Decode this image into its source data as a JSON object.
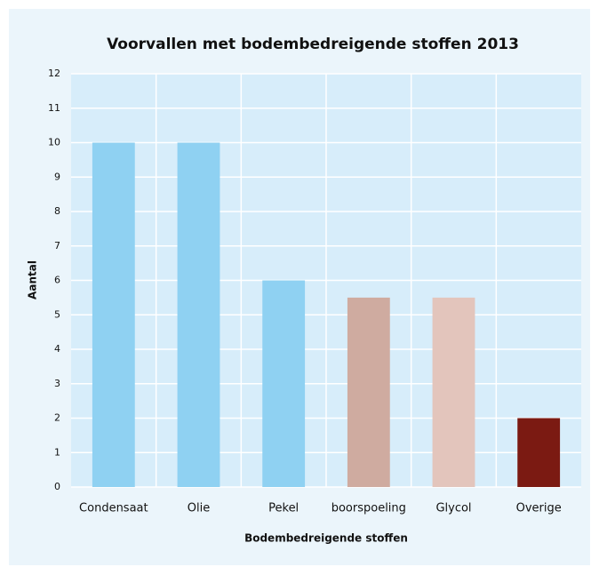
{
  "chart_data": {
    "type": "bar",
    "title": "Voorvallen met bodembedreigende stoffen 2013",
    "x_label": "Bodembedreigende stoffen",
    "y_label": "Aantal",
    "categories": [
      "Condensaat",
      "Olie",
      "Pekel",
      "boorspoeling",
      "Glycol",
      "Overige"
    ],
    "values": [
      10,
      10,
      6,
      5.5,
      5.5,
      2
    ],
    "colors": [
      "#8fd1f2",
      "#8fd1f2",
      "#8fd1f2",
      "#cfaba0",
      "#e3c5bc",
      "#7b1a12"
    ],
    "ylim": [
      0,
      12
    ],
    "yticks": [
      0,
      1,
      2,
      3,
      4,
      5,
      6,
      7,
      8,
      9,
      10,
      11,
      12
    ],
    "grid": true
  }
}
